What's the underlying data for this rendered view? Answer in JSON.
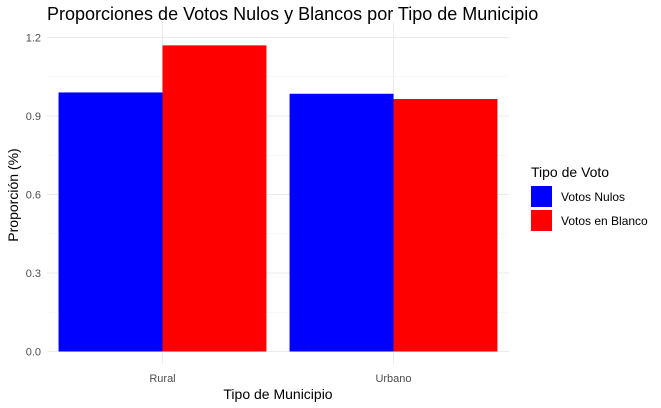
{
  "chart_data": {
    "type": "bar",
    "title": "Proporciones de Votos Nulos y Blancos por Tipo de Municipio",
    "xlabel": "Tipo de Municipio",
    "ylabel": "Proporción (%)",
    "categories": [
      "Rural",
      "Urbano"
    ],
    "series": [
      {
        "name": "Votos Nulos",
        "color": "#0000ff",
        "values": [
          0.99,
          0.985
        ]
      },
      {
        "name": "Votos en Blanco",
        "color": "#ff0000",
        "values": [
          1.17,
          0.965
        ]
      }
    ],
    "ylim": [
      0,
      1.2
    ],
    "yticks": [
      0.0,
      0.3,
      0.6,
      0.9,
      1.2
    ],
    "ytick_labels": [
      "0.0",
      "0.3",
      "0.6",
      "0.9",
      "1.2"
    ],
    "grid": true,
    "legend": {
      "title": "Tipo de Voto",
      "placement": "right"
    }
  }
}
